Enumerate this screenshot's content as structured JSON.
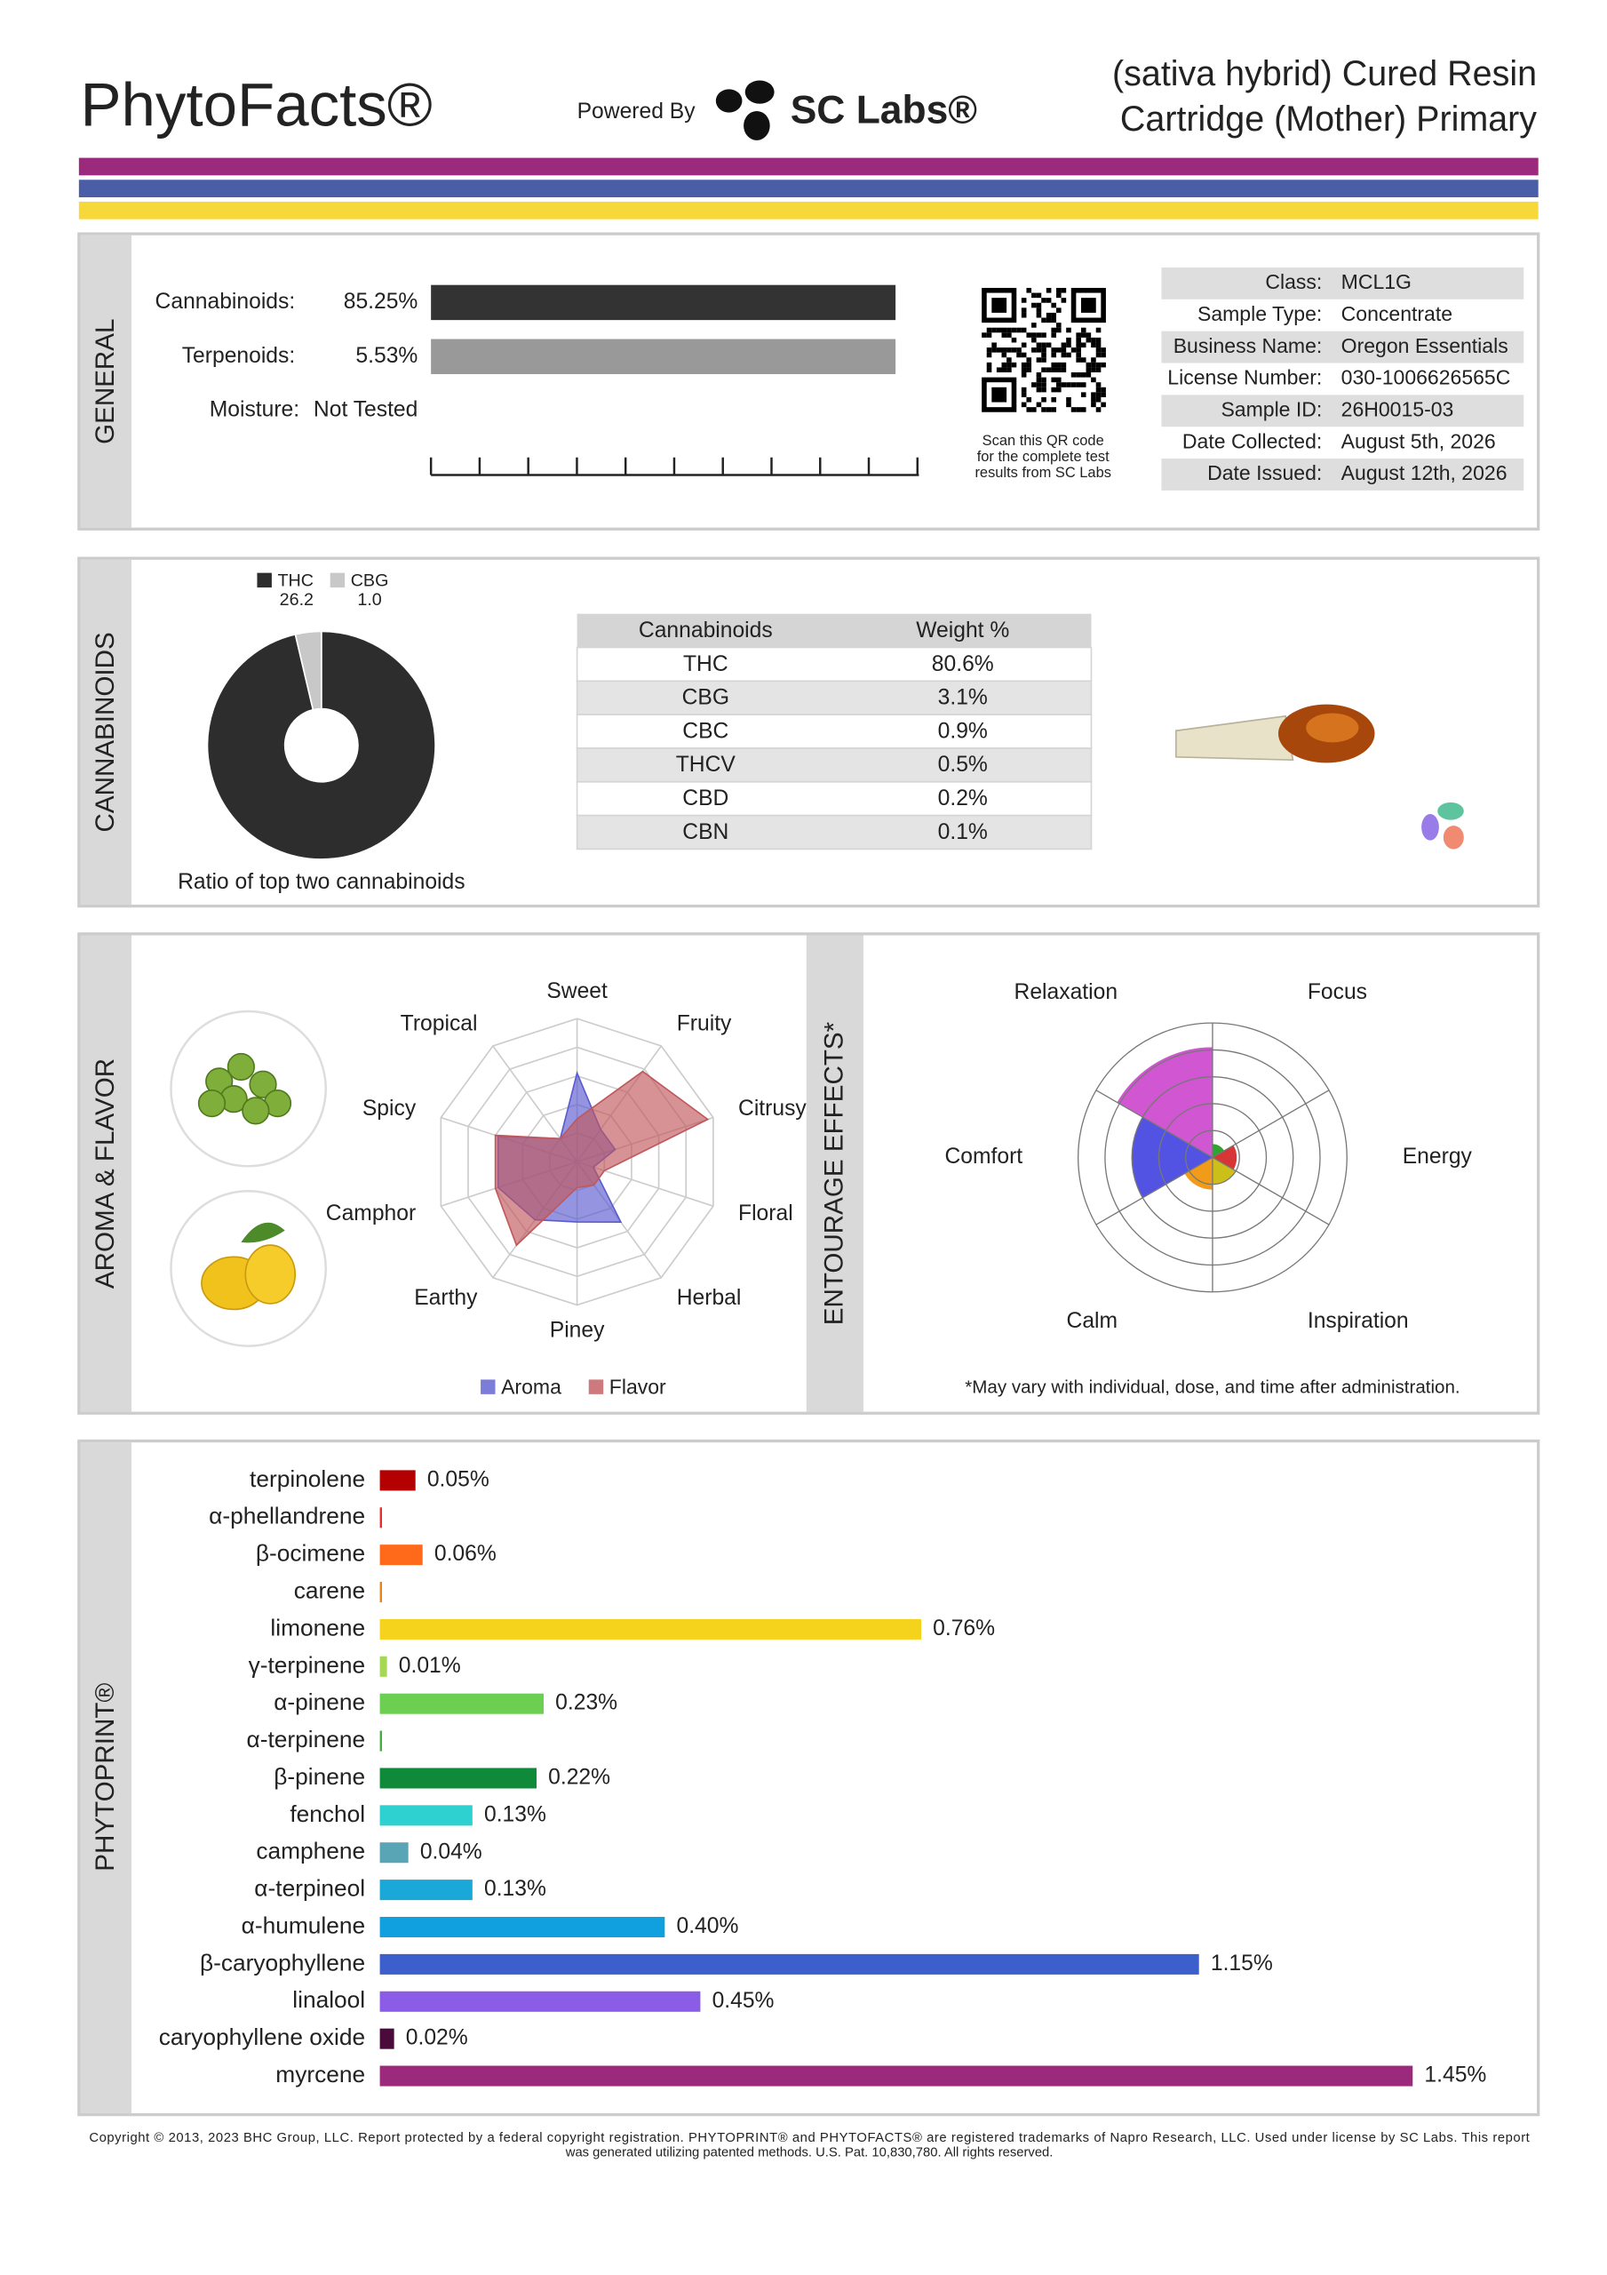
{
  "header": {
    "brand": "PhytoFacts®",
    "powered_by": "Powered By",
    "lab": "SC Labs®",
    "title_lines": [
      "(sativa hybrid) Cured Resin",
      "Cartridge (Mother) Primary"
    ]
  },
  "sections": [
    "GENERAL",
    "CANNABINOIDS",
    "AROMA & FLAVOR",
    "ENTOURAGE EFFECTS*",
    "PHYTOPRINT®"
  ],
  "general": {
    "rows": [
      {
        "label": "Cannabinoids:",
        "value": "85.25%",
        "bar_color": "#333333"
      },
      {
        "label": "Terpenoids:",
        "value": "5.53%",
        "bar_color": "#999999"
      },
      {
        "label": "Moisture:",
        "value": "Not Tested"
      }
    ],
    "qr_caption": [
      "Scan this QR code",
      "for the complete test",
      "results from SC Labs"
    ],
    "info": [
      {
        "label": "Class:",
        "value": "MCL1G"
      },
      {
        "label": "Sample Type:",
        "value": "Concentrate"
      },
      {
        "label": "Business Name:",
        "value": "Oregon Essentials"
      },
      {
        "label": "License Number:",
        "value": "030-1006626565C"
      },
      {
        "label": "Sample ID:",
        "value": "26H0015-03"
      },
      {
        "label": "Date Collected:",
        "value": "August 5th, 2026"
      },
      {
        "label": "Date Issued:",
        "value": "August 12th, 2026"
      }
    ]
  },
  "cannabinoid_table": {
    "header": [
      "Cannabinoids",
      "Weight %"
    ],
    "rows": [
      [
        "THC",
        "80.6%"
      ],
      [
        "CBG",
        "3.1%"
      ],
      [
        "CBC",
        "0.9%"
      ],
      [
        "THCV",
        "0.5%"
      ],
      [
        "CBD",
        "0.2%"
      ],
      [
        "CBN",
        "0.1%"
      ]
    ]
  },
  "chart_data": [
    {
      "type": "donut",
      "caption": "Ratio of top two cannabinoids",
      "categories": [
        "THC",
        "CBG"
      ],
      "values": [
        26.2,
        1.0
      ],
      "value_labels": [
        "26.2",
        "1.0"
      ],
      "colors": [
        "#2d2d2d",
        "#c8c8c8"
      ]
    },
    {
      "type": "radar",
      "categories": [
        "Sweet",
        "Fruity",
        "Citrusy",
        "Floral",
        "Herbal",
        "Piney",
        "Earthy",
        "Camphor",
        "Spicy",
        "Tropical"
      ],
      "series": [
        {
          "name": "Aroma",
          "color": "#5b5bd0",
          "values": [
            3.1,
            1.4,
            1.4,
            0.6,
            2.6,
            2.1,
            2.5,
            2.9,
            2.9,
            1.0
          ]
        },
        {
          "name": "Flavor",
          "color": "#c0585c",
          "values": [
            1.5,
            3.9,
            4.8,
            1.0,
            1.0,
            0.9,
            3.6,
            3.0,
            3.0,
            1.0
          ]
        }
      ],
      "rlim": [
        0,
        5
      ],
      "rticks": [
        1,
        2,
        3,
        4,
        5
      ]
    },
    {
      "type": "polar_area",
      "note": "*May vary with individual, dose, and time after administration.",
      "categories": [
        "Focus",
        "Energy",
        "Inspiration",
        "Calm",
        "Comfort",
        "Relaxation"
      ],
      "colors": [
        "#1a9a1a",
        "#d42020",
        "#c8b800",
        "#f09000",
        "#4040e0",
        "#cc44cc"
      ],
      "values": [
        0.5,
        0.9,
        1.0,
        1.2,
        3.0,
        4.1
      ],
      "rlim": [
        0,
        5
      ],
      "rticks": [
        1,
        2,
        3,
        4,
        5
      ]
    },
    {
      "type": "bar",
      "categories": [
        "terpinolene",
        "α-phellandrene",
        "β-ocimene",
        "carene",
        "limonene",
        "γ-terpinene",
        "α-pinene",
        "α-terpinene",
        "β-pinene",
        "fenchol",
        "camphene",
        "α-terpineol",
        "α-humulene",
        "β-caryophyllene",
        "linalool",
        "caryophyllene oxide",
        "myrcene"
      ],
      "values": [
        0.05,
        0.003,
        0.06,
        0.003,
        0.76,
        0.01,
        0.23,
        0.003,
        0.22,
        0.13,
        0.04,
        0.13,
        0.4,
        1.15,
        0.45,
        0.02,
        1.45
      ],
      "value_labels": [
        "0.05%",
        null,
        "0.06%",
        null,
        "0.76%",
        "0.01%",
        "0.23%",
        null,
        "0.22%",
        "0.13%",
        "0.04%",
        "0.13%",
        "0.40%",
        "1.15%",
        "0.45%",
        "0.02%",
        "1.45%"
      ],
      "colors": [
        "#b30000",
        "#e53030",
        "#ff6a1a",
        "#e0861a",
        "#f5d31c",
        "#a5d855",
        "#6ccf52",
        "#3db33d",
        "#0e8a3a",
        "#2fd0d0",
        "#5aa5b5",
        "#1aa8d8",
        "#10a0e0",
        "#3d5fcc",
        "#8b5ce6",
        "#4a0a3a",
        "#9c2a7c"
      ]
    }
  ],
  "footer": {
    "lines": [
      "Copyright © 2013, 2023 BHC Group, LLC. Report protected by a federal copyright registration. PHYTOPRINT® and PHYTOFACTS® are registered trademarks of Napro Research, LLC. Used under license by SC Labs. This report",
      "was generated utilizing patented methods. U.S. Pat. 10,830,780. All rights reserved."
    ]
  }
}
